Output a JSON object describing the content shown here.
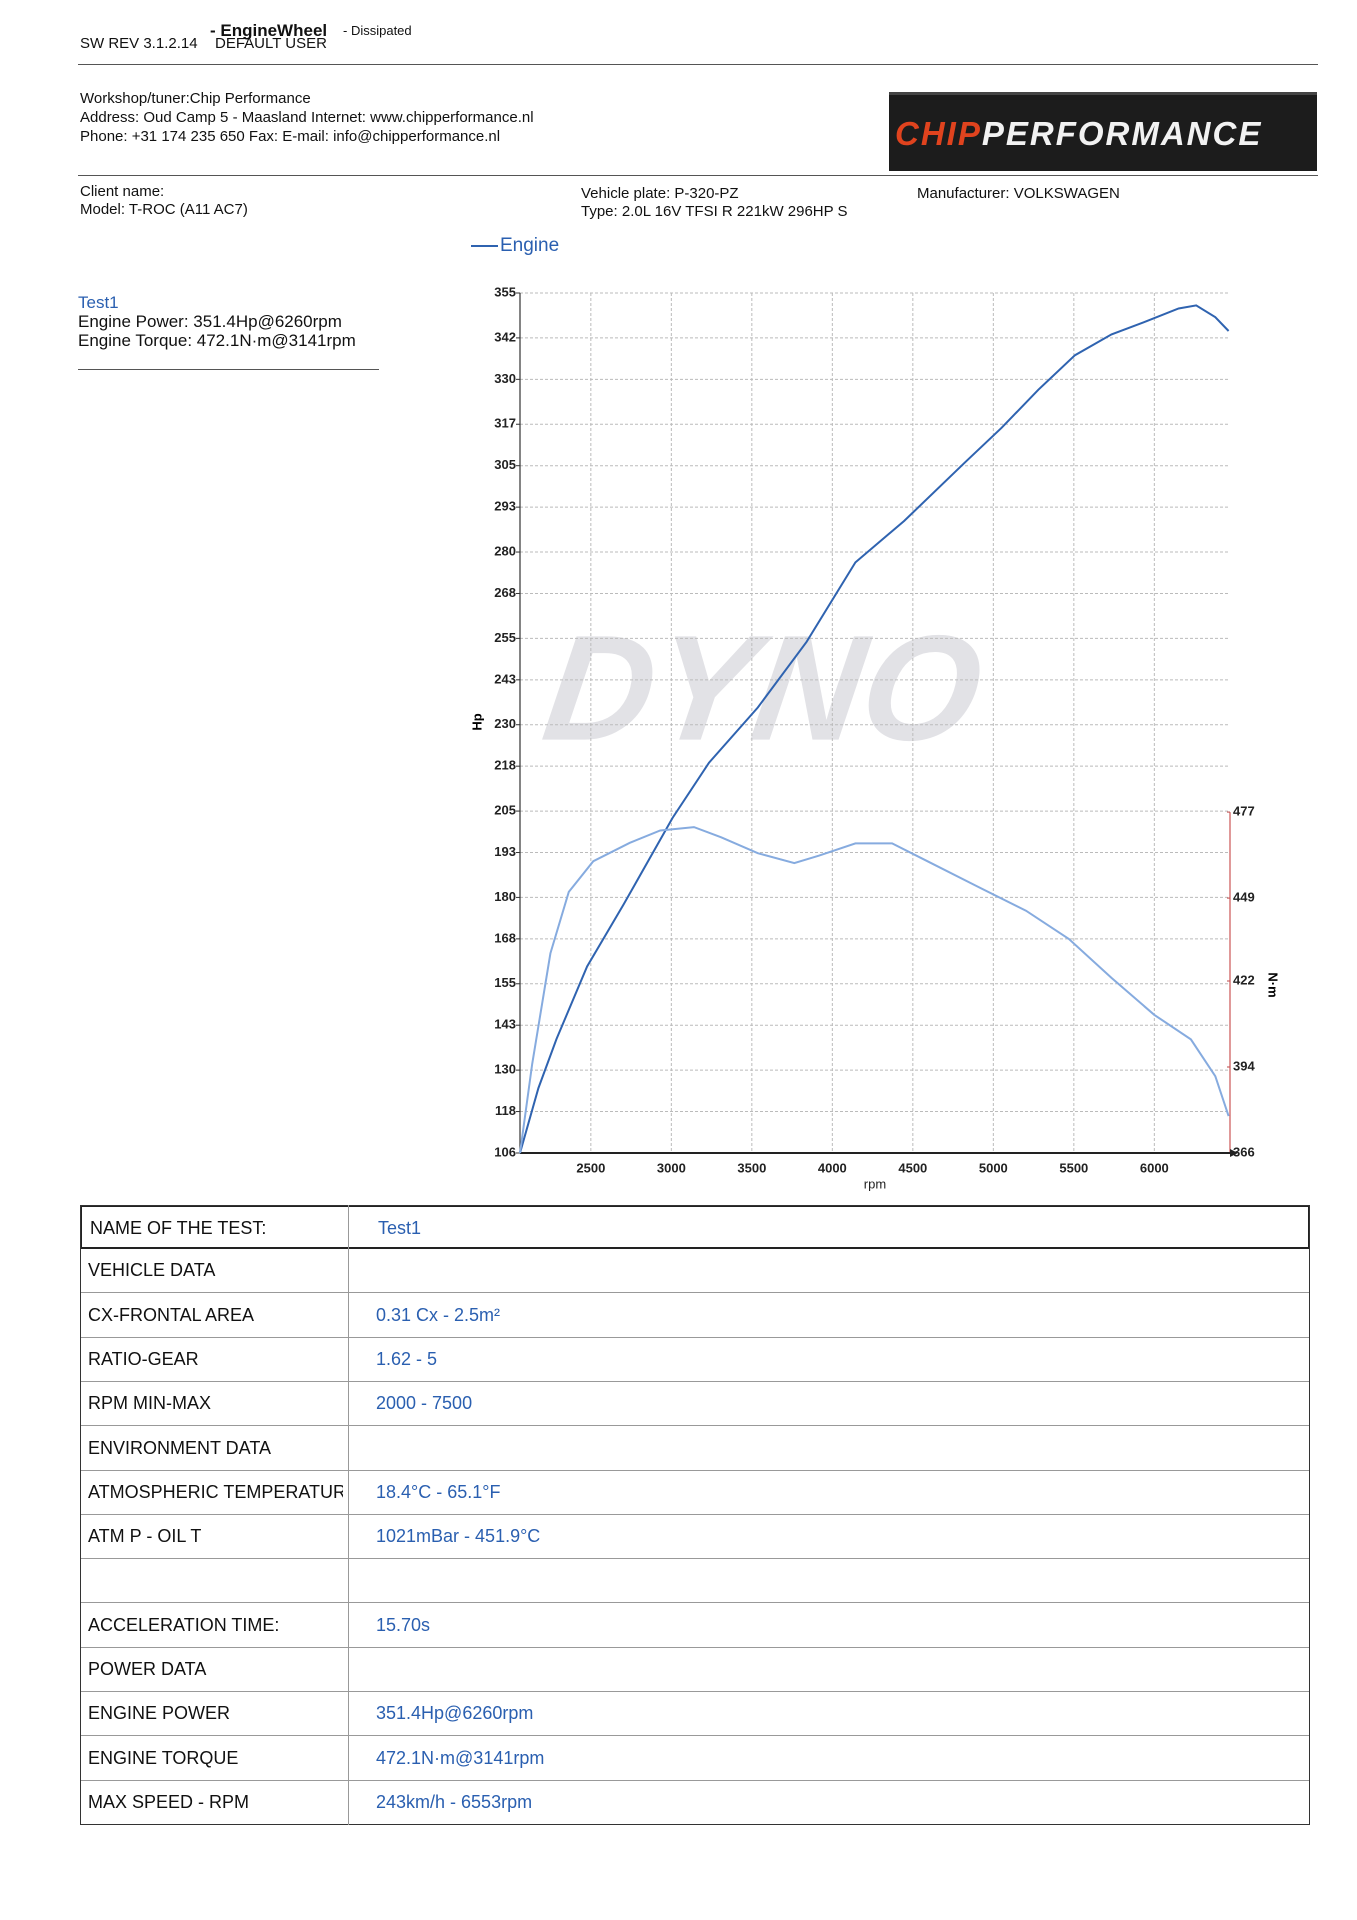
{
  "header": {
    "sw_rev": "SW REV 3.1.2.14",
    "user": "DEFAULT USER",
    "title": "- EngineWheel",
    "subtitle": "- Dissipated"
  },
  "workshop": [
    "Workshop/tuner:Chip Performance",
    "Address: Oud Camp 5 - Maasland Internet: www.chipperformance.nl",
    "Phone: +31 174 235 650 Fax:  E-mail: info@chipperformance.nl"
  ],
  "logo": {
    "part1": "CHIP",
    "part2": "PERFORMANCE"
  },
  "client": {
    "client_name": "Client name:",
    "model": "Model: T-ROC (A11 AC7)",
    "vehicle_plate": "Vehicle plate: P-320-PZ",
    "type": "Type: 2.0L 16V TFSI R 221kW 296HP S",
    "manufacturer": "Manufacturer: VOLKSWAGEN"
  },
  "summary": {
    "test": "Test1",
    "power": "Engine Power: 351.4Hp@6260rpm",
    "torque": "Engine Torque: 472.1N·m@3141rpm"
  },
  "chart_data": {
    "type": "line",
    "watermark": "DYNO",
    "x_label": "rpm",
    "y_label": "Hp",
    "y2_label": "N·m",
    "xlim": [
      2060,
      6470
    ],
    "xticks": [
      2500,
      3000,
      3500,
      4000,
      4500,
      5000,
      5500,
      6000
    ],
    "ylim": [
      106,
      355
    ],
    "yticks": [
      106,
      118,
      130,
      143,
      155,
      168,
      180,
      193,
      205,
      218,
      230,
      243,
      255,
      268,
      280,
      293,
      305,
      317,
      330,
      342,
      355
    ],
    "y2lim": [
      366,
      646
    ],
    "y2ticks": [
      366,
      394,
      422,
      449,
      477
    ],
    "grid": true,
    "series": [
      {
        "name": "Engine",
        "color": "#2f63b0",
        "x": [
          2060,
          2174,
          2287,
          2477,
          2704,
          3007,
          3234,
          3537,
          3840,
          4143,
          4446,
          4825,
          5052,
          5280,
          5507,
          5734,
          5961,
          6151,
          6260,
          6379,
          6461
        ],
        "values": [
          106,
          124.8,
          139,
          160,
          178,
          203,
          219,
          235,
          254,
          277,
          289,
          306,
          316,
          327,
          337,
          343,
          347,
          350.5,
          351.4,
          348,
          344
        ]
      },
      {
        "color": "#86abdf",
        "axis": "y2",
        "x": [
          2060,
          2136,
          2249,
          2363,
          2515,
          2742,
          2931,
          3141,
          3310,
          3537,
          3764,
          3916,
          4143,
          4371,
          4598,
          4900,
          5203,
          5469,
          5734,
          5999,
          6227,
          6379,
          6461
        ],
        "values": [
          366,
          395,
          431,
          451,
          461,
          467,
          471,
          472.1,
          468.8,
          463.6,
          460.4,
          462.8,
          466.8,
          466.8,
          460.8,
          452.8,
          444.9,
          435.7,
          423,
          411,
          403,
          391,
          378
        ]
      }
    ]
  },
  "table": {
    "rows": [
      [
        "NAME OF THE TEST:",
        "Test1"
      ],
      [
        "VEHICLE DATA"
      ],
      [
        "CX-FRONTAL AREA",
        "0.31 Cx - 2.5m²"
      ],
      [
        "RATIO-GEAR",
        "1.62 - 5"
      ],
      [
        "RPM MIN-MAX",
        "2000 - 7500"
      ],
      [
        "ENVIRONMENT DATA"
      ],
      [
        "ATMOSPHERIC TEMPERATURE",
        "18.4°C - 65.1°F"
      ],
      [
        "ATM P - OIL T",
        "1021mBar - 451.9°C"
      ]
    ],
    "rows_after_gap": [
      [
        "ACCELERATION TIME:",
        "15.70s"
      ],
      [
        "POWER DATA"
      ],
      [
        "ENGINE POWER",
        "351.4Hp@6260rpm"
      ],
      [
        "ENGINE TORQUE",
        "472.1N·m@3141rpm"
      ],
      [
        "MAX SPEED - RPM",
        "243km/h - 6553rpm"
      ]
    ]
  }
}
